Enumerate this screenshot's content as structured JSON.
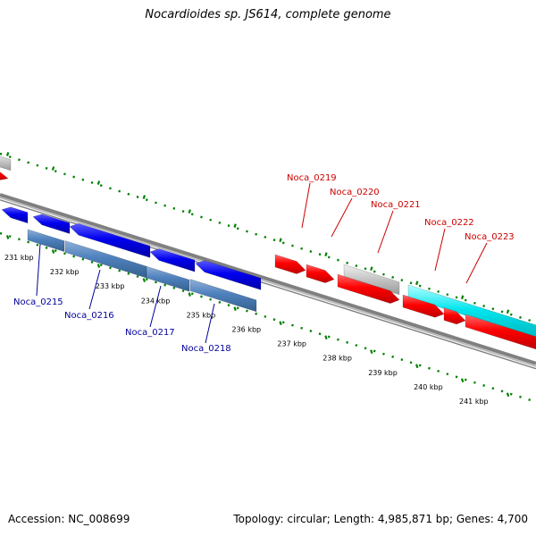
{
  "title": "Nocardioides sp. JS614, complete genome",
  "footer": {
    "accession": "Accession: NC_008699",
    "summary": "Topology: circular; Length: 4,985,871 bp; Genes: 4,700"
  },
  "colors": {
    "forward_gene": "#ff0000",
    "reverse_gene": "#0000ee",
    "reverse_cds": "#4f81bd",
    "forward_cds": "#00e5ee",
    "other_feature": "#c8c8c8",
    "backbone": "#808080",
    "ruler_tick": "#008000",
    "forward_label": "#cc0000",
    "reverse_label": "#000099"
  },
  "ruler": {
    "unit": "kbp",
    "labels": [
      "231 kbp",
      "232 kbp",
      "233 kbp",
      "234 kbp",
      "235 kbp",
      "236 kbp",
      "237 kbp",
      "238 kbp",
      "239 kbp",
      "240 kbp",
      "241 kbp"
    ]
  },
  "genes": [
    {
      "name": "Noca_0215",
      "strand": "reverse"
    },
    {
      "name": "Noca_0216",
      "strand": "reverse"
    },
    {
      "name": "Noca_0217",
      "strand": "reverse"
    },
    {
      "name": "Noca_0218",
      "strand": "reverse"
    },
    {
      "name": "Noca_0219",
      "strand": "forward"
    },
    {
      "name": "Noca_0220",
      "strand": "forward"
    },
    {
      "name": "Noca_0221",
      "strand": "forward"
    },
    {
      "name": "Noca_0222",
      "strand": "forward"
    },
    {
      "name": "Noca_0223",
      "strand": "forward"
    }
  ]
}
